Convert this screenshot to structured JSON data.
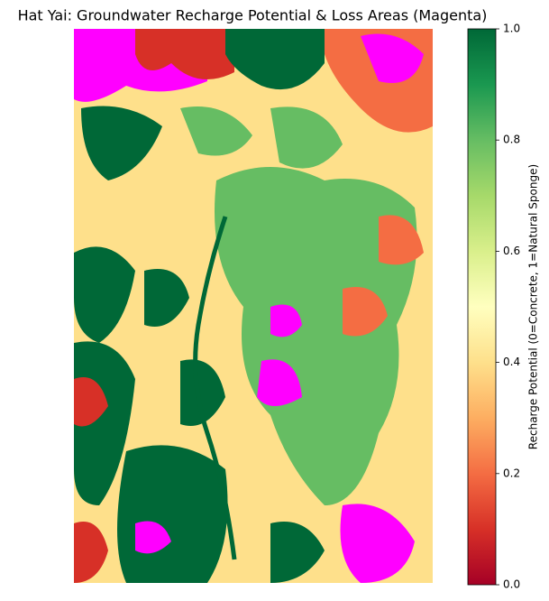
{
  "title": "Hat Yai: Groundwater Recharge Potential & Loss Areas (Magenta)",
  "colorbar": {
    "label": "Recharge Potential (0=Concrete, 1=Natural Sponge)",
    "lim": [
      0,
      1
    ],
    "ticks": [
      {
        "value": 0,
        "label": "0.0"
      },
      {
        "value": 0.2,
        "label": "0.2"
      },
      {
        "value": 0.4,
        "label": "0.4"
      },
      {
        "value": 0.6,
        "label": "0.6"
      },
      {
        "value": 0.8,
        "label": "0.8"
      },
      {
        "value": 1,
        "label": "1.0"
      }
    ]
  }
}
